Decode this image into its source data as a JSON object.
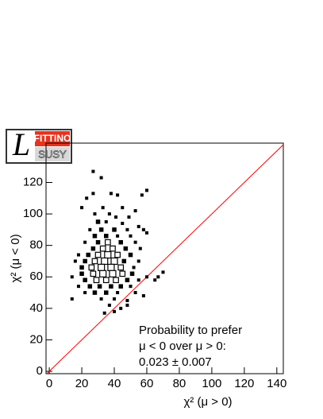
{
  "logo": {
    "mark": "L",
    "top": "FITTINO",
    "bottom": "SUSY"
  },
  "chart_data": {
    "type": "box2d",
    "x_label": "χ² (μ > 0)",
    "y_label": "χ² (μ < 0)",
    "annotation": [
      "Probability to prefer",
      "μ < 0 over μ > 0:",
      "0.023 ± 0.007"
    ],
    "xlim": [
      -2,
      144
    ],
    "ylim": [
      -1.5,
      145
    ],
    "xticks": [
      0,
      20,
      40,
      60,
      80,
      100,
      120,
      140
    ],
    "yticks": [
      0,
      20,
      40,
      60,
      80,
      100,
      120
    ],
    "color": "#000000",
    "diagonal": true,
    "diagonal_color": "#ff0000",
    "x": [
      27,
      32,
      27,
      23,
      38,
      42,
      57,
      60,
      20,
      33,
      45,
      53,
      28,
      37,
      41,
      49,
      30,
      35,
      45,
      55,
      25,
      32,
      40,
      48,
      58,
      60,
      28,
      35,
      42,
      50,
      22,
      30,
      36,
      44,
      53,
      27,
      33,
      39,
      47,
      56,
      18,
      24,
      30,
      36,
      42,
      50,
      16,
      22,
      28,
      34,
      40,
      46,
      55,
      20,
      26,
      32,
      38,
      44,
      52,
      60,
      70,
      14,
      20,
      27,
      33,
      39,
      45,
      51,
      22,
      29,
      35,
      41,
      48,
      55,
      18,
      25,
      31,
      38,
      44,
      50,
      14,
      22,
      28,
      35,
      42,
      53,
      32,
      40,
      48,
      37,
      44,
      40,
      34,
      48,
      58,
      65,
      67
    ],
    "y": [
      127,
      123,
      113,
      110,
      113,
      112,
      112,
      115,
      104,
      104,
      104,
      102,
      100,
      100,
      98,
      98,
      95,
      95,
      94,
      92,
      90,
      90,
      90,
      90,
      90,
      88,
      86,
      86,
      86,
      86,
      82,
      82,
      82,
      82,
      82,
      78,
      78,
      78,
      78,
      78,
      74,
      74,
      74,
      74,
      74,
      74,
      70,
      70,
      70,
      70,
      70,
      70,
      70,
      66,
      66,
      66,
      66,
      66,
      66,
      60,
      63,
      60,
      62,
      62,
      62,
      62,
      62,
      62,
      58,
      58,
      58,
      58,
      58,
      58,
      54,
      54,
      54,
      54,
      54,
      54,
      46,
      50,
      50,
      50,
      50,
      50,
      46,
      46,
      45,
      42,
      40,
      38,
      37,
      42,
      48,
      58,
      60
    ],
    "counts": [
      1,
      1,
      1,
      1,
      1,
      1,
      1,
      1,
      1,
      1,
      1,
      1,
      1,
      1,
      1,
      1,
      2,
      1,
      1,
      1,
      1,
      2,
      2,
      1,
      1,
      1,
      2,
      2,
      1,
      1,
      1,
      2,
      3,
      2,
      1,
      2,
      3,
      3,
      2,
      1,
      1,
      2,
      3,
      4,
      3,
      2,
      1,
      2,
      3,
      4,
      4,
      2,
      1,
      2,
      3,
      4,
      4,
      3,
      1,
      1,
      1,
      1,
      2,
      3,
      4,
      4,
      3,
      2,
      2,
      3,
      3,
      3,
      2,
      1,
      1,
      2,
      2,
      2,
      2,
      1,
      1,
      1,
      2,
      2,
      1,
      1,
      1,
      1,
      1,
      1,
      1,
      1,
      1,
      1,
      1,
      1,
      1
    ]
  }
}
